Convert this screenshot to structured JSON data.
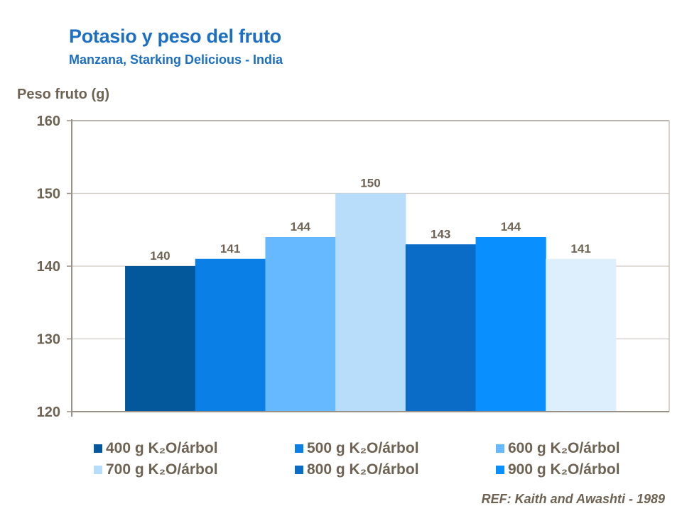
{
  "chart_data": {
    "type": "bar",
    "title": "Potasio y peso del fruto",
    "subtitle": "Manzana, Starking Delicious - India",
    "ylabel": "Peso fruto (g)",
    "xlabel": "",
    "ylim": [
      120,
      160
    ],
    "yticks": [
      "120",
      "130",
      "140",
      "150",
      "160"
    ],
    "grid": true,
    "legend_position": "bottom",
    "series": [
      {
        "name": "400 g K₂O/árbol",
        "value": 140,
        "color": "#03579b"
      },
      {
        "name": "500 g K₂O/árbol",
        "value": 141,
        "color": "#0a80e6"
      },
      {
        "name": "600 g K₂O/árbol",
        "value": 144,
        "color": "#66b8ff"
      },
      {
        "name": "700 g K₂O/árbol",
        "value": 150,
        "color": "#b8ddfb"
      },
      {
        "name": "800 g K₂O/árbol",
        "value": 143,
        "color": "#0a6cc6"
      },
      {
        "name": "900 g K₂O/árbol",
        "value": 144,
        "color": "#0a8fff"
      },
      {
        "value": 141,
        "color": "#ddeefc"
      }
    ],
    "data_labels": [
      "140",
      "141",
      "144",
      "150",
      "143",
      "144",
      "141"
    ]
  },
  "reference": "REF: Kaith and Awashti - 1989"
}
